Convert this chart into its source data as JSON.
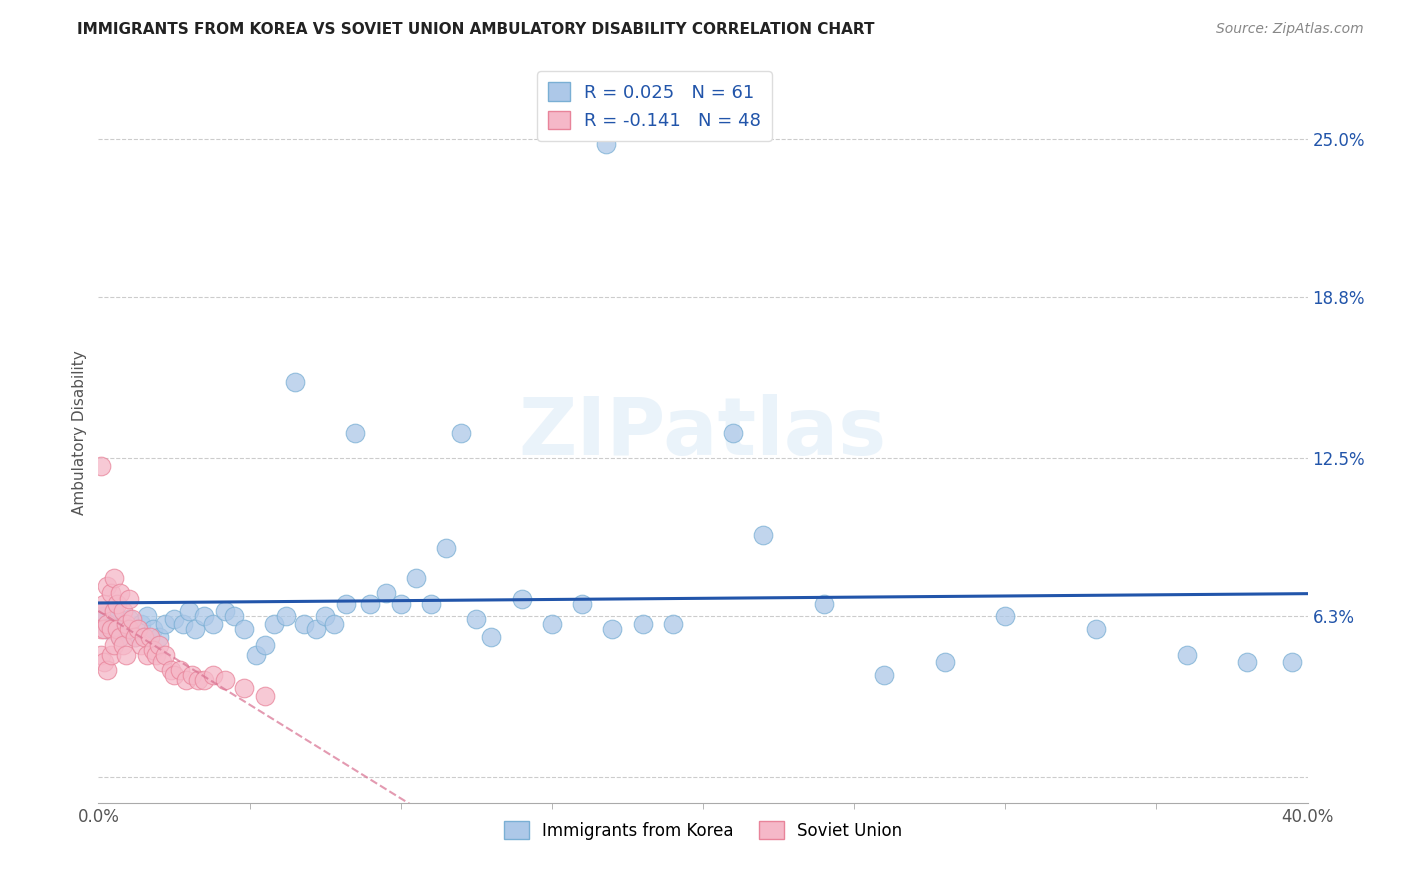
{
  "title": "IMMIGRANTS FROM KOREA VS SOVIET UNION AMBULATORY DISABILITY CORRELATION CHART",
  "source": "Source: ZipAtlas.com",
  "ylabel": "Ambulatory Disability",
  "xlim": [
    0.0,
    0.4
  ],
  "ylim": [
    -0.01,
    0.28
  ],
  "ytick_positions": [
    0.0,
    0.063,
    0.125,
    0.188,
    0.25
  ],
  "ytick_labels": [
    "",
    "6.3%",
    "12.5%",
    "18.8%",
    "25.0%"
  ],
  "xtick_positions": [
    0.0,
    0.4
  ],
  "xtick_labels": [
    "0.0%",
    "40.0%"
  ],
  "korea_R": 0.025,
  "korea_N": 61,
  "soviet_R": -0.141,
  "soviet_N": 48,
  "korea_color": "#adc8e8",
  "soviet_color": "#f5b8c8",
  "korea_edge_color": "#7aafd4",
  "soviet_edge_color": "#e8849a",
  "trend_korea_color": "#2255aa",
  "trend_soviet_color": "#d87090",
  "background_color": "#ffffff",
  "grid_color": "#cccccc",
  "title_color": "#333333",
  "legend_label1": "Immigrants from Korea",
  "legend_label2": "Soviet Union",
  "korea_x": [
    0.001,
    0.002,
    0.003,
    0.004,
    0.005,
    0.006,
    0.007,
    0.008,
    0.009,
    0.01,
    0.012,
    0.014,
    0.016,
    0.018,
    0.02,
    0.022,
    0.025,
    0.028,
    0.03,
    0.032,
    0.035,
    0.038,
    0.042,
    0.045,
    0.048,
    0.052,
    0.055,
    0.058,
    0.062,
    0.065,
    0.068,
    0.072,
    0.075,
    0.078,
    0.082,
    0.085,
    0.09,
    0.095,
    0.1,
    0.105,
    0.11,
    0.115,
    0.12,
    0.125,
    0.13,
    0.14,
    0.15,
    0.16,
    0.17,
    0.18,
    0.19,
    0.21,
    0.22,
    0.24,
    0.26,
    0.28,
    0.3,
    0.33,
    0.36,
    0.38,
    0.395
  ],
  "korea_y": [
    0.063,
    0.063,
    0.058,
    0.06,
    0.065,
    0.058,
    0.055,
    0.06,
    0.058,
    0.062,
    0.055,
    0.06,
    0.063,
    0.058,
    0.055,
    0.06,
    0.062,
    0.06,
    0.065,
    0.058,
    0.063,
    0.06,
    0.065,
    0.063,
    0.058,
    0.048,
    0.052,
    0.06,
    0.063,
    0.155,
    0.06,
    0.058,
    0.063,
    0.06,
    0.068,
    0.135,
    0.068,
    0.072,
    0.068,
    0.078,
    0.068,
    0.09,
    0.135,
    0.062,
    0.055,
    0.07,
    0.06,
    0.068,
    0.058,
    0.06,
    0.06,
    0.135,
    0.095,
    0.068,
    0.04,
    0.045,
    0.063,
    0.058,
    0.048,
    0.045,
    0.045
  ],
  "korea_outlier_x": [
    0.168
  ],
  "korea_outlier_y": [
    0.248
  ],
  "soviet_x": [
    0.001,
    0.001,
    0.001,
    0.002,
    0.002,
    0.002,
    0.003,
    0.003,
    0.003,
    0.004,
    0.004,
    0.004,
    0.005,
    0.005,
    0.005,
    0.006,
    0.006,
    0.007,
    0.007,
    0.008,
    0.008,
    0.009,
    0.009,
    0.01,
    0.01,
    0.011,
    0.012,
    0.013,
    0.014,
    0.015,
    0.016,
    0.017,
    0.018,
    0.019,
    0.02,
    0.021,
    0.022,
    0.024,
    0.025,
    0.027,
    0.029,
    0.031,
    0.033,
    0.035,
    0.038,
    0.042,
    0.048,
    0.055
  ],
  "soviet_y": [
    0.058,
    0.065,
    0.048,
    0.068,
    0.058,
    0.045,
    0.075,
    0.06,
    0.042,
    0.072,
    0.058,
    0.048,
    0.078,
    0.065,
    0.052,
    0.068,
    0.058,
    0.072,
    0.055,
    0.065,
    0.052,
    0.06,
    0.048,
    0.07,
    0.058,
    0.062,
    0.055,
    0.058,
    0.052,
    0.055,
    0.048,
    0.055,
    0.05,
    0.048,
    0.052,
    0.045,
    0.048,
    0.042,
    0.04,
    0.042,
    0.038,
    0.04,
    0.038,
    0.038,
    0.04,
    0.038,
    0.035,
    0.032
  ],
  "soviet_outlier_x": [
    0.001
  ],
  "soviet_outlier_y": [
    0.122
  ]
}
